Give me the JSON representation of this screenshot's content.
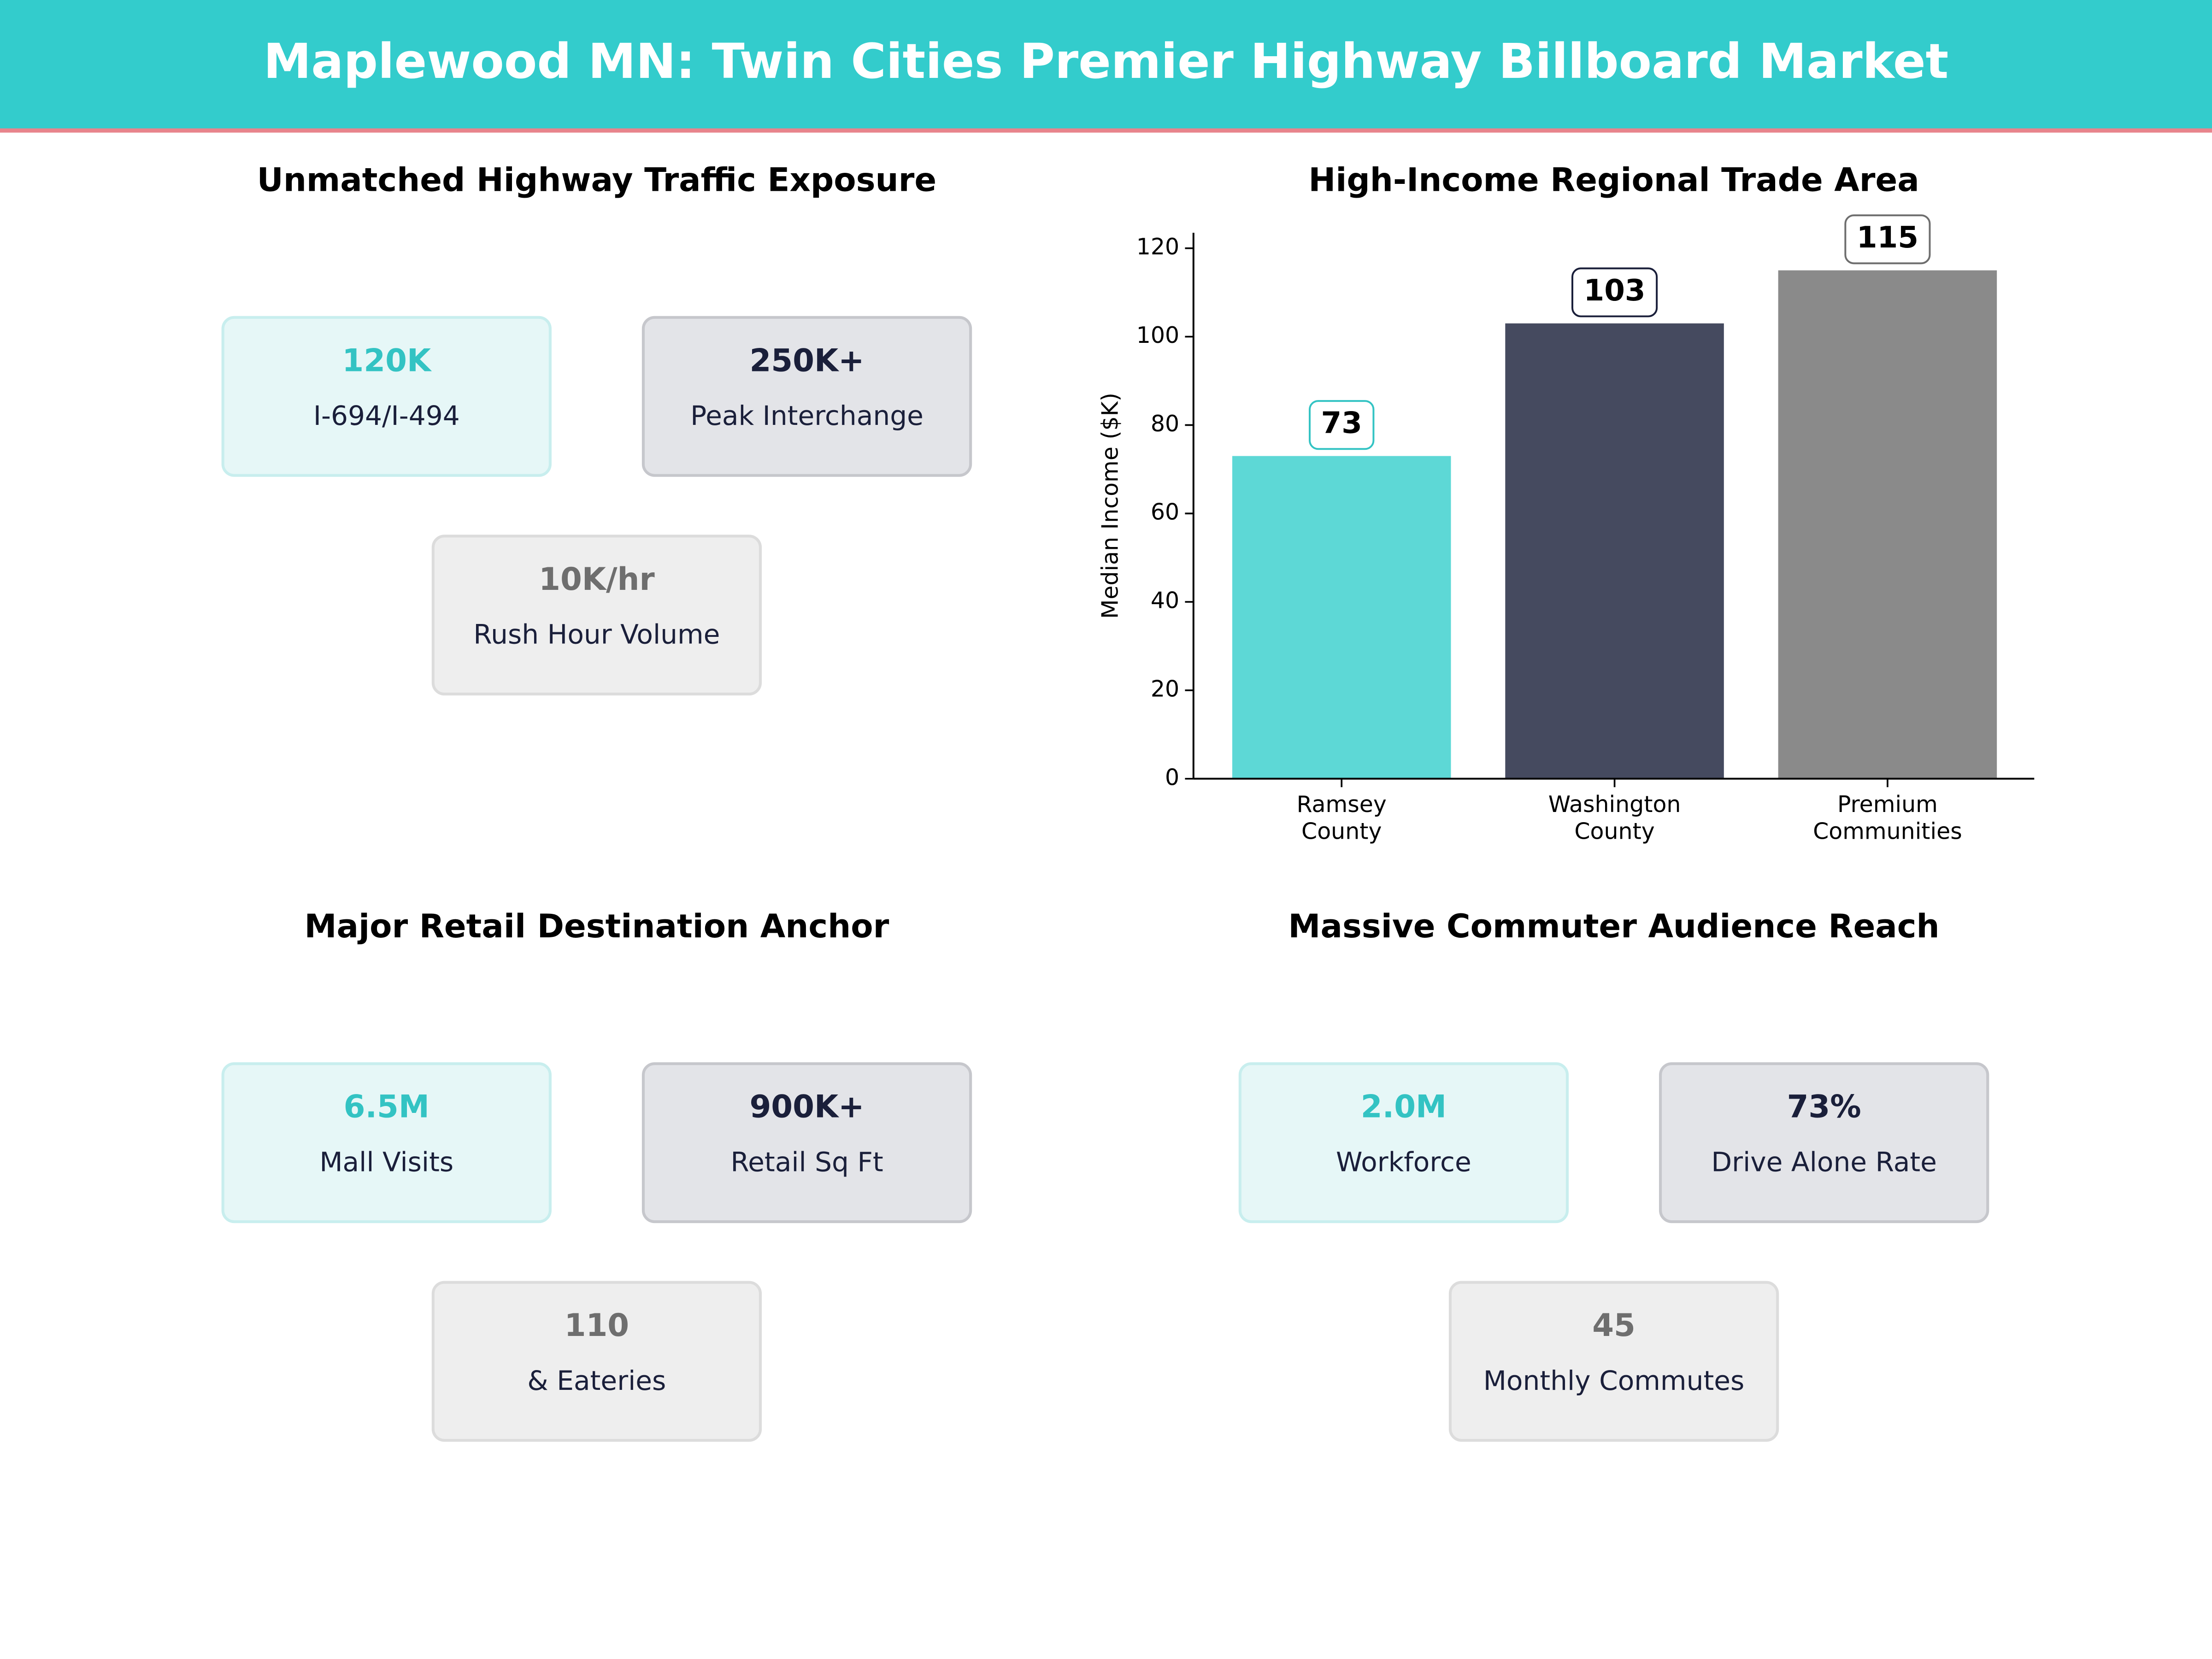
{
  "header": {
    "title": "Maplewood MN: Twin Cities Premier Highway Billboard Market"
  },
  "kpi_panels": [
    {
      "title": "Unmatched Highway Traffic Exposure",
      "cards": [
        {
          "value": "120K",
          "label": "I-694/I-494"
        },
        {
          "value": "250K+",
          "label": "Peak Interchange"
        },
        {
          "value": "10K/hr",
          "label": "Rush Hour Volume"
        }
      ]
    },
    {
      "title": "Major Retail Destination Anchor",
      "cards": [
        {
          "value": "6.5M",
          "label": "Mall Visits"
        },
        {
          "value": "900K+",
          "label": "Retail Sq Ft"
        },
        {
          "value": "110",
          "label": "& Eateries"
        }
      ]
    },
    {
      "title": "Massive Commuter Audience Reach",
      "cards": [
        {
          "value": "2.0M",
          "label": "Workforce"
        },
        {
          "value": "73%",
          "label": "Drive Alone Rate"
        },
        {
          "value": "45",
          "label": "Monthly Commutes"
        }
      ]
    }
  ],
  "chart_data": {
    "type": "bar",
    "title": "High-Income Regional Trade Area",
    "categories": [
      "Ramsey\nCounty",
      "Washington\nCounty",
      "Premium\nCommunities"
    ],
    "values": [
      73,
      103,
      115
    ],
    "colors": [
      "#5dd8d6",
      "#454a5f",
      "#8a8a8a"
    ],
    "label_border_colors": [
      "#33c3c3",
      "#1a1f3a",
      "#6e6e6e"
    ],
    "ylabel": "Median Income ($K)",
    "ylim": [
      0,
      123.5
    ],
    "yticks": [
      0,
      20,
      40,
      60,
      80,
      100,
      120
    ]
  }
}
